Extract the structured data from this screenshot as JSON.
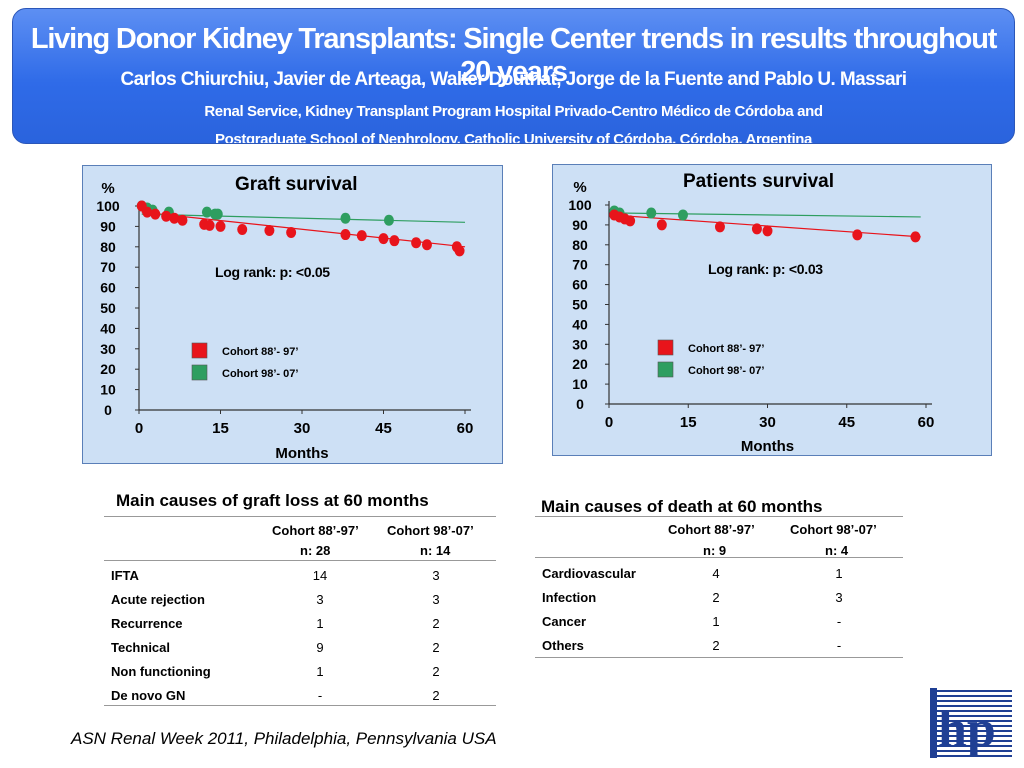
{
  "header": {
    "title": "Living Donor Kidney Transplants: Single Center trends in results throughout 20 years",
    "authors": "Carlos Chiurchiu,  Javier de Arteaga,  Walter Douthat,  Jorge de la Fuente and  Pablo U. Massari",
    "affiliation1": "Renal  Service,  Kidney  Transplant  Program  Hospital  Privado-Centro  Médico  de  Córdoba  and",
    "affiliation2": "Postgraduate  School  of  Nephrology,  Catholic  University  of  Córdoba,  Córdoba,  Argentina"
  },
  "chart_data": [
    {
      "type": "scatter",
      "title": "Graft survival",
      "ylabel": "%",
      "xlabel": "Months",
      "xlim": [
        0,
        60
      ],
      "ylim": [
        0,
        100
      ],
      "xticks": [
        0,
        15,
        30,
        45,
        60
      ],
      "yticks": [
        0,
        10,
        20,
        30,
        40,
        50,
        60,
        70,
        80,
        90,
        100
      ],
      "grid": false,
      "legend_position": "bottom-left",
      "annotation": "Log rank: p: <0.05",
      "series": [
        {
          "name": "Cohort  88’- 97’",
          "color": "#e8141b",
          "x": [
            0.5,
            1.5,
            3,
            5,
            6.5,
            8,
            12,
            13,
            15,
            19,
            24,
            28,
            38,
            41,
            45,
            47,
            51,
            53,
            58.5,
            59
          ],
          "y": [
            100,
            97,
            96,
            95,
            94,
            93,
            91,
            90.5,
            90,
            88.5,
            88,
            87,
            86,
            85.5,
            84,
            83,
            82,
            81,
            80,
            78
          ],
          "trend": {
            "x": [
              0.5,
              60
            ],
            "y": [
              97,
              80
            ]
          }
        },
        {
          "name": "Cohort  98’- 07’",
          "color": "#2e9e60",
          "x": [
            0.5,
            1.5,
            2.5,
            5.5,
            12.5,
            14,
            14.5,
            38,
            46
          ],
          "y": [
            100,
            99,
            98,
            97,
            97,
            96,
            96,
            94,
            93
          ],
          "trend": {
            "x": [
              0.5,
              60
            ],
            "y": [
              96,
              92
            ]
          }
        }
      ]
    },
    {
      "type": "scatter",
      "title": "Patients survival",
      "ylabel": "%",
      "xlabel": "Months",
      "xlim": [
        0,
        60
      ],
      "ylim": [
        0,
        100
      ],
      "xticks": [
        0,
        15,
        30,
        45,
        60
      ],
      "yticks": [
        0,
        10,
        20,
        30,
        40,
        50,
        60,
        70,
        80,
        90,
        100
      ],
      "grid": false,
      "legend_position": "bottom-left",
      "annotation": "Log rank: p: <0.03",
      "series": [
        {
          "name": "Cohort  88’- 97’",
          "color": "#e8141b",
          "x": [
            1,
            2,
            3,
            4,
            10,
            21,
            28,
            30,
            47,
            58
          ],
          "y": [
            95,
            94,
            93,
            92,
            90,
            89,
            88,
            87,
            85,
            84
          ],
          "trend": {
            "x": [
              0.5,
              59
            ],
            "y": [
              95,
              84
            ]
          }
        },
        {
          "name": "Cohort  98’- 07’",
          "color": "#2e9e60",
          "x": [
            1,
            2,
            8,
            14
          ],
          "y": [
            97,
            96,
            96,
            95
          ],
          "trend": {
            "x": [
              0.5,
              59
            ],
            "y": [
              96,
              94
            ]
          }
        }
      ]
    }
  ],
  "graft_loss_table": {
    "title": "Main causes of graft loss at 60 months",
    "col1": "Cohort 88’-97’",
    "col1_n": "n: 28",
    "col2": "Cohort  98’-07’",
    "col2_n": "n: 14",
    "rows": [
      {
        "cause": "IFTA",
        "c1": "14",
        "c2": "3"
      },
      {
        "cause": "Acute rejection",
        "c1": "3",
        "c2": "3"
      },
      {
        "cause": "Recurrence",
        "c1": "1",
        "c2": "2"
      },
      {
        "cause": "Technical",
        "c1": "9",
        "c2": "2"
      },
      {
        "cause": "Non functioning",
        "c1": "1",
        "c2": "2"
      },
      {
        "cause": "De novo  GN",
        "c1": "-",
        "c2": "2"
      }
    ]
  },
  "death_table": {
    "title": "Main causes of death at 60 months",
    "col1": "Cohort 88’-97’",
    "col1_n": "n: 9",
    "col2": "Cohort  98’-07’",
    "col2_n": "n: 4",
    "rows": [
      {
        "cause": "Cardiovascular",
        "c1": "4",
        "c2": "1"
      },
      {
        "cause": "Infection",
        "c1": "2",
        "c2": "3"
      },
      {
        "cause": "Cancer",
        "c1": "1",
        "c2": "-"
      },
      {
        "cause": "Others",
        "c1": "2",
        "c2": "-"
      }
    ]
  },
  "footer": {
    "note": "ASN Renal Week 2011, Philadelphia, Pennsylvania USA"
  },
  "logo": {
    "icon": "hp-logo",
    "text": "hp",
    "color": "#1f3f94"
  }
}
